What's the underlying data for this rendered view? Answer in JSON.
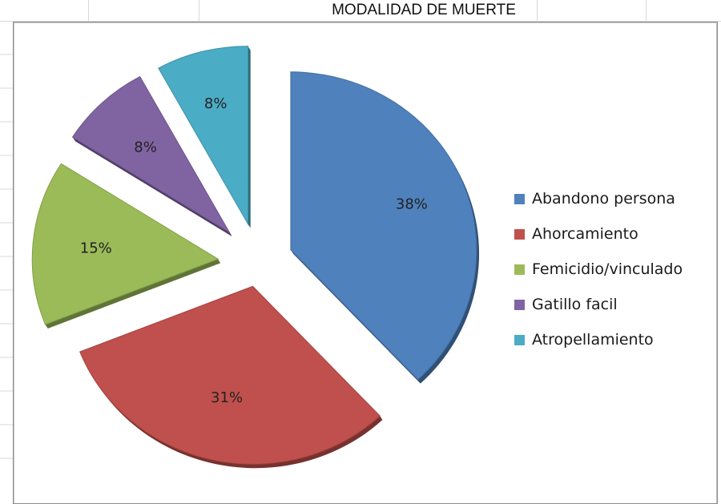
{
  "sheet": {
    "title": "MODALIDAD DE MUERTE"
  },
  "chart_data": {
    "type": "pie",
    "title": "",
    "exploded": true,
    "legend_position": "right",
    "slices": [
      {
        "name": "Abandono persona",
        "value": 38,
        "label": "38%",
        "color": "#4f81bd"
      },
      {
        "name": "Ahorcamiento",
        "value": 31,
        "label": "31%",
        "color": "#c0504d"
      },
      {
        "name": "Femicidio/vinculado",
        "value": 15,
        "label": "15%",
        "color": "#9bbb59"
      },
      {
        "name": "Gatillo facil",
        "value": 8,
        "label": "8%",
        "color": "#8064a2"
      },
      {
        "name": "Atropellamiento",
        "value": 8,
        "label": "8%",
        "color": "#4bacc6"
      }
    ]
  }
}
